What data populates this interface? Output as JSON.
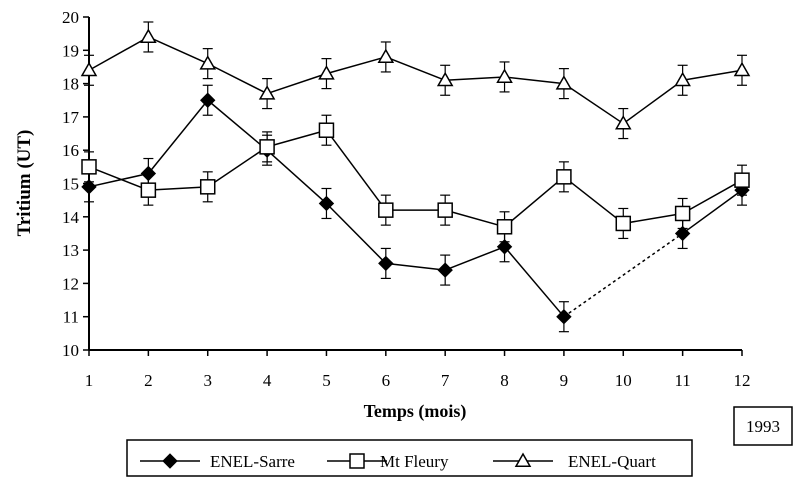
{
  "chart_data": {
    "type": "line",
    "title": "",
    "xlabel": "Temps (mois)",
    "ylabel": "Tritium (UT)",
    "x": [
      1,
      2,
      3,
      4,
      5,
      6,
      7,
      8,
      9,
      10,
      11,
      12
    ],
    "xlim": [
      1,
      12
    ],
    "ylim": [
      10,
      20
    ],
    "yticks": [
      10,
      11,
      12,
      13,
      14,
      15,
      16,
      17,
      18,
      19,
      20
    ],
    "xticks": [
      1,
      2,
      3,
      4,
      5,
      6,
      7,
      8,
      9,
      10,
      11,
      12
    ],
    "grid": false,
    "annotation": "1993",
    "legend_position": "bottom",
    "series": [
      {
        "name": "ENEL-Sarre",
        "marker": "diamond-filled",
        "x": [
          1,
          2,
          3,
          4,
          5,
          6,
          7,
          8,
          9,
          11,
          12
        ],
        "values": [
          14.9,
          15.3,
          17.5,
          16.0,
          14.4,
          12.6,
          12.4,
          13.1,
          11.0,
          13.5,
          14.8
        ],
        "error": 0.45,
        "dotted_gap": [
          9,
          11
        ]
      },
      {
        "name": "Mt Fleury",
        "marker": "square-open",
        "x": [
          1,
          2,
          3,
          4,
          5,
          6,
          7,
          8,
          9,
          10,
          11,
          12
        ],
        "values": [
          15.5,
          14.8,
          14.9,
          16.1,
          16.6,
          14.2,
          14.2,
          13.7,
          15.2,
          13.8,
          14.1,
          15.1
        ],
        "error": 0.45
      },
      {
        "name": "ENEL-Quart",
        "marker": "triangle-open",
        "x": [
          1,
          2,
          3,
          4,
          5,
          6,
          7,
          8,
          9,
          10,
          11,
          12
        ],
        "values": [
          18.4,
          19.4,
          18.6,
          17.7,
          18.3,
          18.8,
          18.1,
          18.2,
          18.0,
          16.8,
          18.1,
          18.4
        ],
        "error": 0.45
      }
    ]
  }
}
